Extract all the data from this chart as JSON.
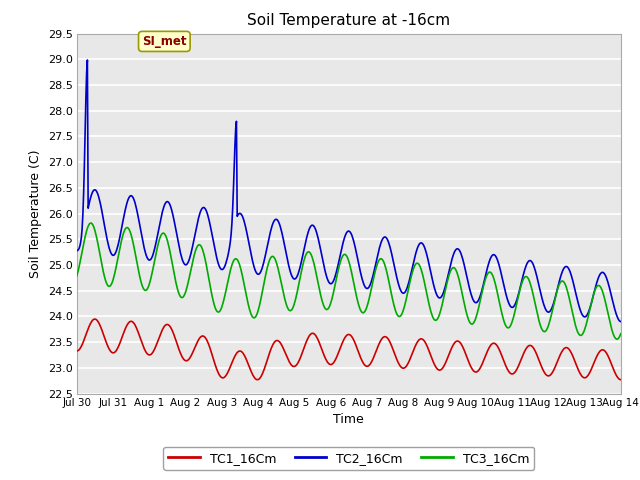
{
  "title": "Soil Temperature at -16cm",
  "xlabel": "Time",
  "ylabel": "Soil Temperature (C)",
  "ylim": [
    22.5,
    29.5
  ],
  "xlim_days": [
    0,
    15.0
  ],
  "fig_bg_color": "#ffffff",
  "plot_bg_color": "#e8e8e8",
  "grid_color": "#ffffff",
  "series": {
    "TC1_16Cm": {
      "color": "#cc0000",
      "linewidth": 1.2
    },
    "TC2_16Cm": {
      "color": "#0000cc",
      "linewidth": 1.2
    },
    "TC3_16Cm": {
      "color": "#00aa00",
      "linewidth": 1.2
    }
  },
  "yticks": [
    22.5,
    23.0,
    23.5,
    24.0,
    24.5,
    25.0,
    25.5,
    26.0,
    26.5,
    27.0,
    27.5,
    28.0,
    28.5,
    29.0,
    29.5
  ],
  "xtick_labels": [
    "Jul 30",
    "Jul 31",
    "Aug 1",
    "Aug 2",
    "Aug 3",
    "Aug 4",
    "Aug 5",
    "Aug 6",
    "Aug 7",
    "Aug 8",
    "Aug 9",
    "Aug 10",
    "Aug 11",
    "Aug 12",
    "Aug 13",
    "Aug 14"
  ],
  "xtick_positions": [
    0,
    1,
    2,
    3,
    4,
    5,
    6,
    7,
    8,
    9,
    10,
    11,
    12,
    13,
    14,
    15
  ],
  "annotation_text": "SI_met",
  "legend_labels": [
    "TC1_16Cm",
    "TC2_16Cm",
    "TC3_16Cm"
  ]
}
